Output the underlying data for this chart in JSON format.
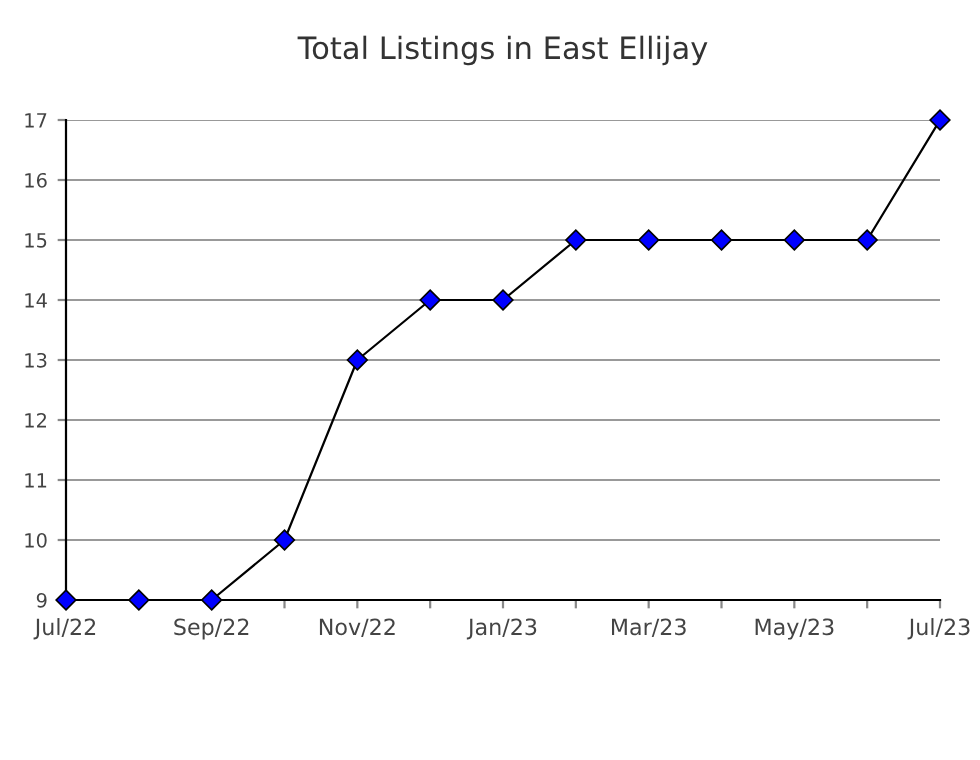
{
  "chart_data": {
    "type": "line",
    "title": "Total Listings in East Ellijay",
    "categories": [
      "Jul/22",
      null,
      "Sep/22",
      null,
      "Nov/22",
      null,
      "Jan/23",
      null,
      "Mar/23",
      null,
      "May/23",
      null,
      "Jul/23"
    ],
    "series": [
      {
        "color": "#0000ff",
        "values": [
          9,
          9,
          9,
          10,
          13,
          14,
          14,
          15,
          15,
          15,
          15,
          15,
          17
        ]
      }
    ],
    "ylim": [
      9,
      17
    ],
    "yticks": [
      9,
      10,
      11,
      12,
      13,
      14,
      15,
      16,
      17
    ],
    "grid": "y",
    "marker": "diamond",
    "line_style": "solid",
    "legend": false
  }
}
